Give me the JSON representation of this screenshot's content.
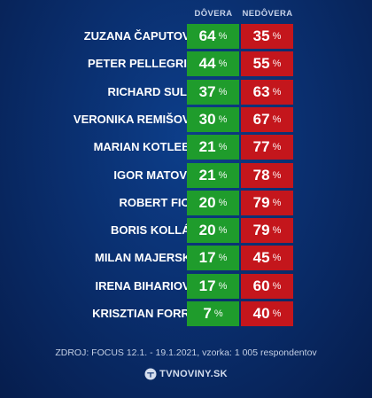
{
  "chart_data": {
    "type": "table",
    "columns": [
      "DÔVERA",
      "NEDÔVERA"
    ],
    "unit": "%",
    "rows": [
      {
        "name": "ZUZANA ČAPUTOVÁ",
        "trust": 64,
        "distrust": 35
      },
      {
        "name": "PETER PELLEGRINI",
        "trust": 44,
        "distrust": 55
      },
      {
        "name": "RICHARD SULÍK",
        "trust": 37,
        "distrust": 63
      },
      {
        "name": "VERONIKA REMIŠOVÁ",
        "trust": 30,
        "distrust": 67
      },
      {
        "name": "MARIAN KOTLEBA",
        "trust": 21,
        "distrust": 77
      },
      {
        "name": "IGOR MATOVIČ",
        "trust": 21,
        "distrust": 78
      },
      {
        "name": "ROBERT FICO",
        "trust": 20,
        "distrust": 79
      },
      {
        "name": "BORIS KOLLÁR",
        "trust": 20,
        "distrust": 79
      },
      {
        "name": "MILAN MAJERSKÝ",
        "trust": 17,
        "distrust": 45
      },
      {
        "name": "IRENA BIHARIOVÁ",
        "trust": 17,
        "distrust": 60
      },
      {
        "name": "KRISZTIAN FORRÓ",
        "trust": 7,
        "distrust": 40
      }
    ]
  },
  "source": "ZDROJ: FOCUS 12.1. - 19.1.2021, vzorka: 1 005 respondentov",
  "logo": {
    "text": "TVNOVINY.SK",
    "icon": "tvnoviny-logo-icon"
  },
  "colors": {
    "trust": "#1f9c2c",
    "distrust": "#c4161c",
    "background": "#0a2f6f"
  }
}
